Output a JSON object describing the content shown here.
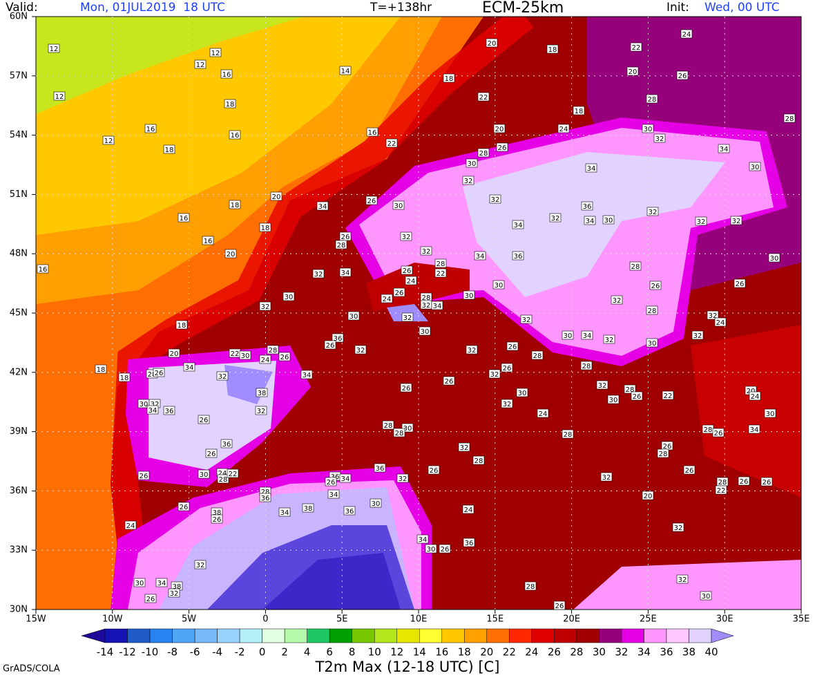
{
  "header": {
    "valid_label": "Valid:",
    "valid_time": "Mon, 01JUL2019  18 UTC",
    "lead": "T=+138hr",
    "model": "ECM-25km",
    "init_label": "Init:",
    "init_time": "Wed, 00 UTC"
  },
  "map": {
    "lat_labels": [
      "60N",
      "57N",
      "54N",
      "51N",
      "48N",
      "45N",
      "42N",
      "39N",
      "36N",
      "33N",
      "30N"
    ],
    "lon_labels": [
      "15W",
      "10W",
      "5W",
      "0",
      "5E",
      "10E",
      "15E",
      "20E",
      "25E",
      "30E",
      "35E"
    ],
    "point_values": [
      12,
      12,
      12,
      12,
      16,
      18,
      16,
      12,
      18,
      16,
      14,
      18,
      20,
      18,
      24,
      22,
      20,
      26,
      28,
      18,
      22,
      20,
      24,
      30,
      32,
      28,
      34,
      30,
      16,
      22,
      28,
      26,
      30,
      32,
      34,
      32,
      26,
      30,
      34,
      20,
      18,
      16,
      18,
      16,
      20,
      16,
      26,
      28,
      32,
      32,
      36,
      34,
      30,
      32,
      32,
      32,
      34,
      32,
      34,
      36,
      30,
      32,
      34,
      26,
      28,
      22,
      28,
      26,
      26,
      24,
      30,
      30,
      32,
      26,
      24,
      28,
      32,
      34,
      30,
      30,
      32,
      30,
      32,
      28,
      32,
      32,
      24,
      18,
      20,
      22,
      30,
      24,
      26,
      28,
      36,
      26,
      32,
      32,
      26,
      28,
      30,
      34,
      32,
      30,
      32,
      18,
      18,
      34,
      32,
      28,
      26,
      34,
      38,
      32,
      26,
      26,
      26,
      32,
      28,
      32,
      28,
      26,
      30,
      22,
      20,
      24,
      30,
      32,
      34,
      36,
      26,
      28,
      30,
      28,
      32,
      30,
      24,
      30,
      28,
      26,
      34,
      36,
      26,
      28,
      26,
      28,
      32,
      28,
      26,
      36,
      32,
      36,
      34,
      26,
      30,
      24,
      28,
      22,
      26,
      32,
      26,
      26,
      28,
      22,
      26,
      28,
      36,
      34,
      30,
      26,
      38,
      38,
      36,
      34,
      26,
      24,
      20,
      24,
      32,
      34,
      30,
      26,
      36,
      32,
      30,
      34,
      38,
      32,
      26,
      28,
      26,
      32,
      30
    ]
  },
  "colorbar": {
    "levels": [
      -14,
      -12,
      -10,
      -8,
      -6,
      -4,
      -2,
      0,
      2,
      4,
      6,
      8,
      10,
      12,
      14,
      16,
      18,
      20,
      22,
      24,
      26,
      28,
      30,
      32,
      34,
      36,
      38,
      40
    ],
    "colors": [
      "#1e0a96",
      "#1414b4",
      "#1e5ac8",
      "#2882f0",
      "#50a5f5",
      "#78b9fa",
      "#96d2fa",
      "#b4f0fa",
      "#e1ffe1",
      "#b4faaa",
      "#1ec864",
      "#00a000",
      "#78c800",
      "#b4e61e",
      "#e6e600",
      "#ffff32",
      "#ffc800",
      "#ffa000",
      "#ff6e00",
      "#ff2800",
      "#e10000",
      "#c00000",
      "#a00000",
      "#96007a",
      "#e600e6",
      "#ff96ff",
      "#ffc8ff",
      "#e1d2ff",
      "#a08cff",
      "#5a3cdc"
    ]
  },
  "footer": {
    "credit": "GrADS/COLA",
    "title": "T2m Max (12-18 UTC) [C]"
  }
}
